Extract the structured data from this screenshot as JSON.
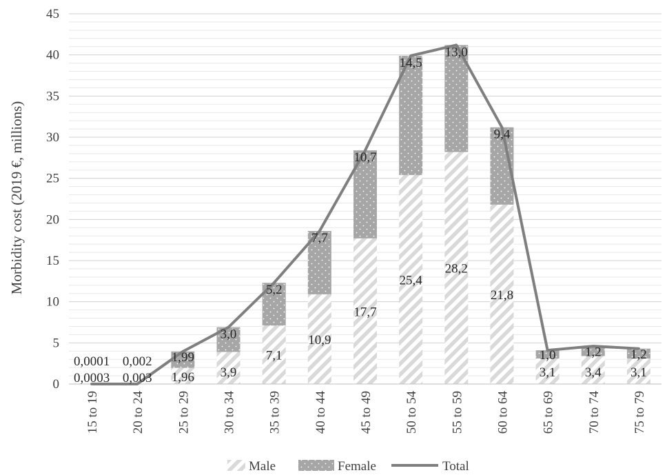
{
  "chart_data": {
    "type": "bar",
    "stacked": true,
    "ylabel": "Morbidity cost (2019 €, millions)",
    "xlabel": "",
    "ylim": [
      0,
      45
    ],
    "yticks": [
      "0",
      "5",
      "10",
      "15",
      "20",
      "25",
      "30",
      "35",
      "40",
      "45"
    ],
    "grid": true,
    "legend_position": "bottom",
    "categories": [
      "15 to 19",
      "20 to 24",
      "25 to 29",
      "30 to 34",
      "35 to 39",
      "40 to 44",
      "45 to 49",
      "50 to 54",
      "55 to 59",
      "60 to 64",
      "65 to 69",
      "70 to 74",
      "75 to 79"
    ],
    "series": [
      {
        "name": "Male",
        "kind": "bar",
        "pattern": "diagonal-stripes",
        "color": "#d9d9d9",
        "values": [
          0.0003,
          0.003,
          1.96,
          3.9,
          7.1,
          10.9,
          17.7,
          25.4,
          28.2,
          21.8,
          3.1,
          3.4,
          3.1
        ],
        "labels": [
          "0,0003",
          "0,003",
          "1,96",
          "3,9",
          "7,1",
          "10,9",
          "17,7",
          "25,4",
          "28,2",
          "21,8",
          "3,1",
          "3,4",
          "3,1"
        ]
      },
      {
        "name": "Female",
        "kind": "bar",
        "pattern": "dots",
        "color": "#a6a6a6",
        "values": [
          0.0001,
          0.002,
          1.99,
          3.0,
          5.2,
          7.7,
          10.7,
          14.5,
          13.0,
          9.4,
          1.0,
          1.2,
          1.2
        ],
        "labels": [
          "0,0001",
          "0,002",
          "1,99",
          "3,0",
          "5,2",
          "7,7",
          "10,7",
          "14,5",
          "13,0",
          "9,4",
          "1,0",
          "1,2",
          "1,2"
        ]
      },
      {
        "name": "Total",
        "kind": "line",
        "color": "#7f7f7f",
        "values": [
          0.0004,
          0.005,
          3.95,
          6.9,
          12.3,
          18.6,
          28.4,
          39.9,
          41.2,
          31.2,
          4.1,
          4.6,
          4.3
        ]
      }
    ]
  }
}
